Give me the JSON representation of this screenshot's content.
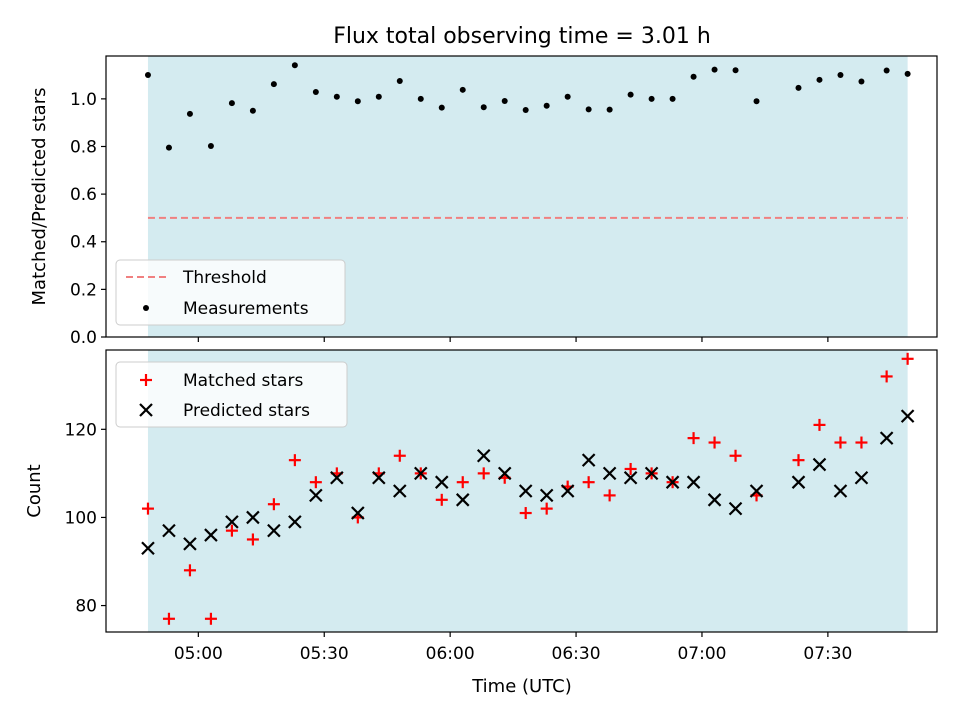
{
  "chart_data": [
    {
      "type": "scatter",
      "title": "Flux total observing time = 3.01 h",
      "xlabel": "",
      "ylabel": "Matched/Predicted stars",
      "ylim": [
        0,
        1.18
      ],
      "yticks": [
        "0.0",
        "0.2",
        "0.4",
        "0.6",
        "0.8",
        "1.0"
      ],
      "ytick_values": [
        0,
        0.2,
        0.4,
        0.6,
        0.8,
        1.0
      ],
      "xlim": [
        "04:38",
        "07:56"
      ],
      "shaded_range": [
        "04:48",
        "07:49"
      ],
      "threshold": 0.5,
      "legend_position": "lower-left",
      "legend": [
        {
          "label": "Threshold",
          "style": "dashed-line",
          "color": "#f08080"
        },
        {
          "label": "Measurements",
          "style": "dot",
          "color": "#000000"
        }
      ],
      "series": [
        {
          "name": "Measurements",
          "x": [
            "04:48",
            "04:53",
            "04:58",
            "05:03",
            "05:08",
            "05:13",
            "05:18",
            "05:23",
            "05:28",
            "05:33",
            "05:38",
            "05:43",
            "05:48",
            "05:53",
            "05:58",
            "06:03",
            "06:08",
            "06:13",
            "06:18",
            "06:23",
            "06:28",
            "06:33",
            "06:38",
            "06:43",
            "06:48",
            "06:53",
            "06:58",
            "07:03",
            "07:08",
            "07:13",
            "07:23",
            "07:28",
            "07:33",
            "07:38",
            "07:44",
            "07:49"
          ],
          "values": [
            1.1,
            0.795,
            0.937,
            0.802,
            0.982,
            0.95,
            1.062,
            1.141,
            1.029,
            1.009,
            0.99,
            1.009,
            1.075,
            1.0,
            0.963,
            1.038,
            0.965,
            0.991,
            0.953,
            0.971,
            1.009,
            0.956,
            0.955,
            1.018,
            1.0,
            1.0,
            1.093,
            1.123,
            1.12,
            0.99,
            1.046,
            1.08,
            1.1,
            1.073,
            1.119,
            1.105
          ]
        }
      ]
    },
    {
      "type": "scatter",
      "title": "",
      "xlabel": "Time (UTC)",
      "ylabel": "Count",
      "ylim": [
        74,
        138
      ],
      "yticks": [
        "80",
        "100",
        "120"
      ],
      "ytick_values": [
        80,
        100,
        120
      ],
      "xlim": [
        "04:38",
        "07:56"
      ],
      "xticks": [
        "05:00",
        "05:30",
        "06:00",
        "06:30",
        "07:00",
        "07:30"
      ],
      "shaded_range": [
        "04:48",
        "07:49"
      ],
      "legend_position": "upper-left",
      "categories": [
        "04:48",
        "04:53",
        "04:58",
        "05:03",
        "05:08",
        "05:13",
        "05:18",
        "05:23",
        "05:28",
        "05:33",
        "05:38",
        "05:43",
        "05:48",
        "05:53",
        "05:58",
        "06:03",
        "06:08",
        "06:13",
        "06:18",
        "06:23",
        "06:28",
        "06:33",
        "06:38",
        "06:43",
        "06:48",
        "06:53",
        "06:58",
        "07:03",
        "07:08",
        "07:13",
        "07:23",
        "07:28",
        "07:33",
        "07:38",
        "07:44",
        "07:49"
      ],
      "series": [
        {
          "name": "Matched stars",
          "marker": "plus",
          "color": "#ff0000",
          "values": [
            102,
            77,
            88,
            77,
            97,
            95,
            103,
            113,
            108,
            110,
            100,
            110,
            114,
            110,
            104,
            108,
            110,
            109,
            101,
            102,
            107,
            108,
            105,
            111,
            110,
            108,
            118,
            117,
            114,
            105,
            113,
            121,
            117,
            117,
            132,
            136
          ]
        },
        {
          "name": "Predicted stars",
          "marker": "x",
          "color": "#000000",
          "values": [
            93,
            97,
            94,
            96,
            99,
            100,
            97,
            99,
            105,
            109,
            101,
            109,
            106,
            110,
            108,
            104,
            114,
            110,
            106,
            105,
            106,
            113,
            110,
            109,
            110,
            108,
            108,
            104,
            102,
            106,
            108,
            112,
            106,
            109,
            118,
            123
          ]
        }
      ]
    }
  ],
  "colors": {
    "shade": "#d4ebf0",
    "threshold": "#f08080",
    "matched": "#ff0000",
    "predicted": "#000000",
    "points": "#000000"
  }
}
